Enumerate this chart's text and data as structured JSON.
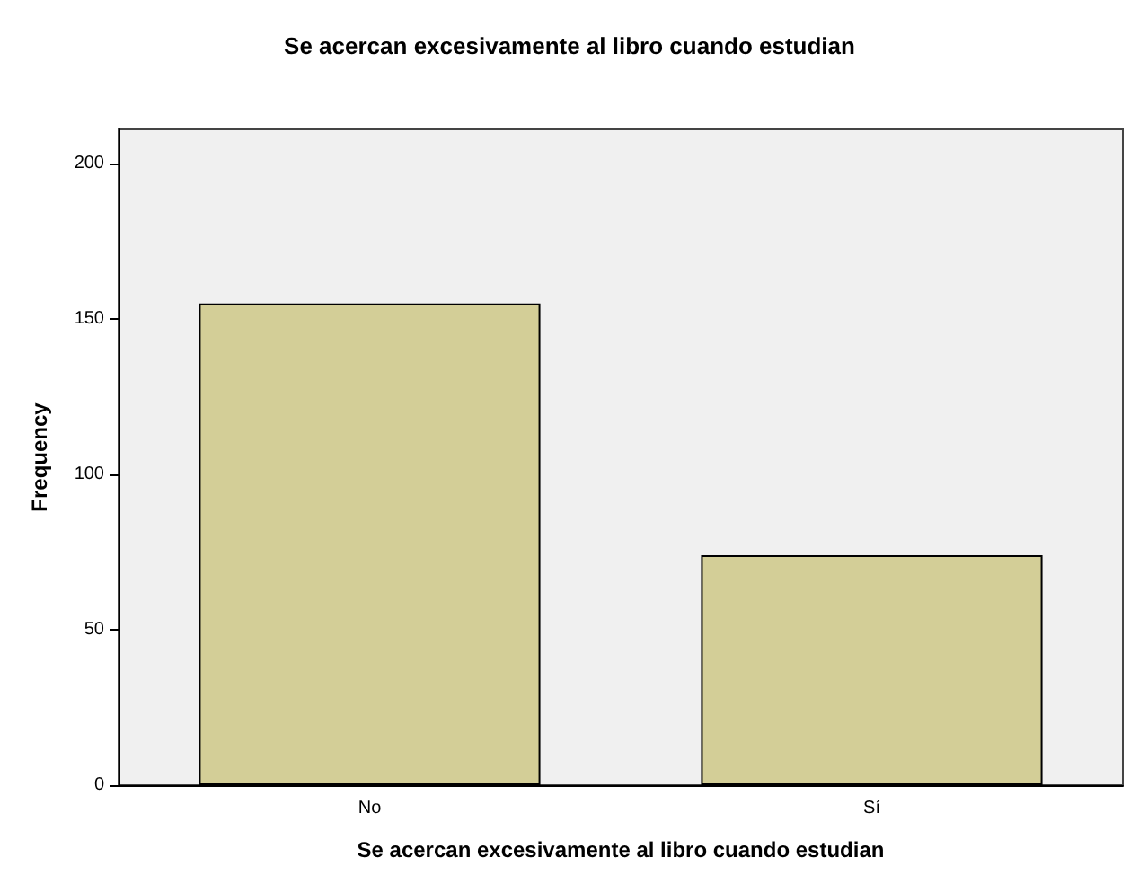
{
  "chart_data": {
    "type": "bar",
    "title": "Se acercan excesivamente al libro cuando estudian",
    "xlabel": "Se acercan excesivamente al libro cuando estudian",
    "ylabel": "Frequency",
    "categories": [
      "No",
      "Sí"
    ],
    "values": [
      155,
      74
    ],
    "color": "#d3ce97",
    "ylim": [
      0,
      211
    ],
    "yticks": [
      0,
      50,
      100,
      150,
      200
    ],
    "grid": false
  }
}
